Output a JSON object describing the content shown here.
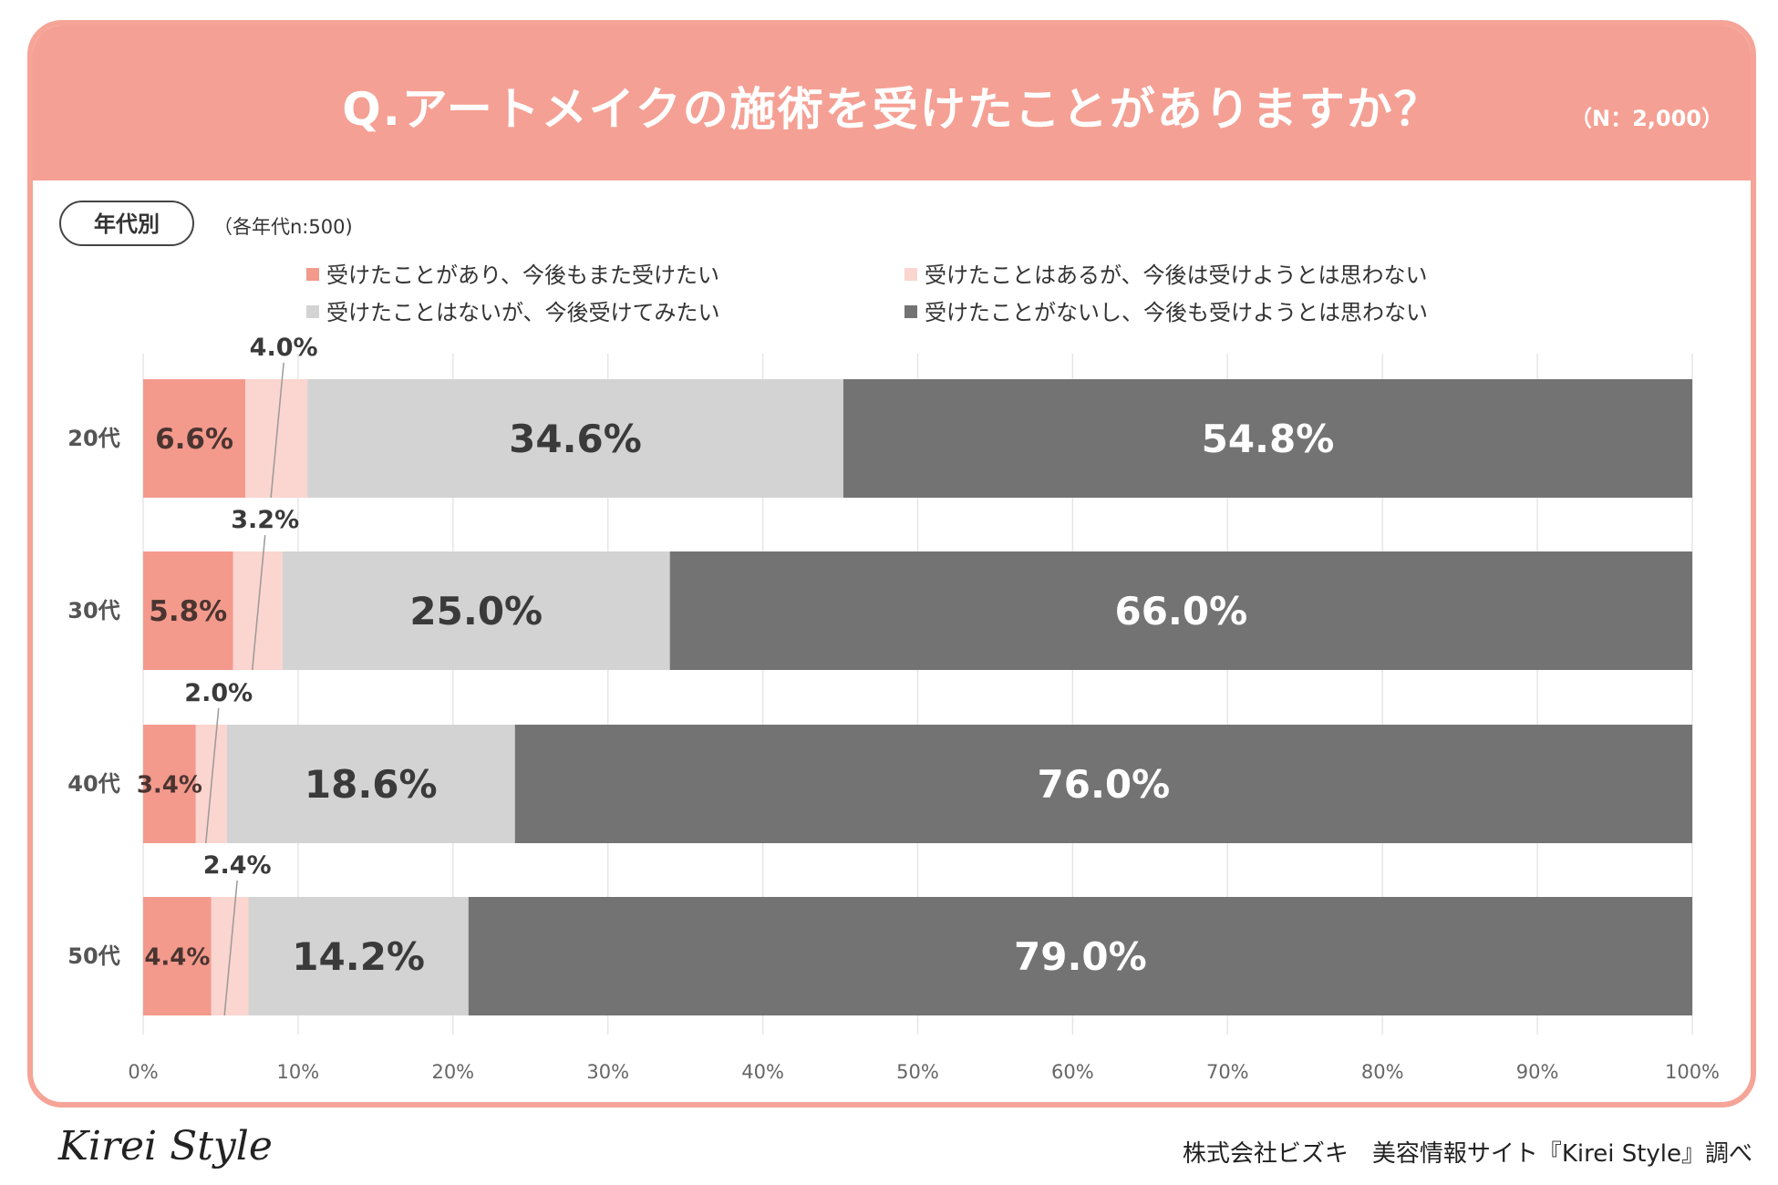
{
  "header": {
    "title": "Q.アートメイクの施術を受けたことがありますか？",
    "n_total": "（N：2,000）"
  },
  "filter": {
    "badge": "年代別",
    "note": "（各年代n:500)"
  },
  "footer": {
    "logo": "Kirei Style",
    "source": "株式会社ビズキ　美容情報サイト『Kirei Style』調べ"
  },
  "colors": {
    "header": "#f5a094",
    "s1": "#f39a8d",
    "s2": "#fbd5cf",
    "s3": "#d3d3d3",
    "s4": "#737373",
    "grid": "#e6e6e6"
  },
  "chart_data": {
    "type": "bar",
    "orientation": "horizontal",
    "stacked": true,
    "title": "Q.アートメイクの施術を受けたことがありますか？",
    "categories": [
      "20代",
      "30代",
      "40代",
      "50代"
    ],
    "series": [
      {
        "name": "受けたことがあり、今後もまた受けたい",
        "values": [
          6.6,
          5.8,
          3.4,
          4.4
        ],
        "labels": [
          "6.6%",
          "5.8%",
          "3.4%",
          "4.4%"
        ]
      },
      {
        "name": "受けたことはあるが、今後は受けようとは思わない",
        "values": [
          4.0,
          3.2,
          2.0,
          2.4
        ],
        "labels": [
          "4.0%",
          "3.2%",
          "2.0%",
          "2.4%"
        ]
      },
      {
        "name": "受けたことはないが、今後受けてみたい",
        "values": [
          34.6,
          25.0,
          18.6,
          14.2
        ],
        "labels": [
          "34.6%",
          "25.0%",
          "18.6%",
          "14.2%"
        ]
      },
      {
        "name": "受けたことがないし、今後も受けようとは思わない",
        "values": [
          54.8,
          66.0,
          76.0,
          79.0
        ],
        "labels": [
          "54.8%",
          "66.0%",
          "76.0%",
          "79.0%"
        ]
      }
    ],
    "xlim": [
      0,
      100
    ],
    "xticks": [
      "0%",
      "10%",
      "20%",
      "30%",
      "40%",
      "50%",
      "60%",
      "70%",
      "80%",
      "90%",
      "100%"
    ],
    "legend_position": "top",
    "grid": true
  }
}
